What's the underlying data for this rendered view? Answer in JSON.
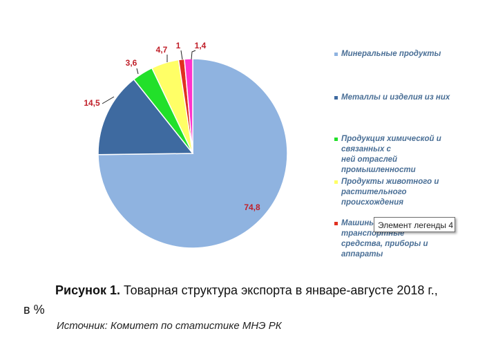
{
  "chart_data": {
    "type": "pie",
    "title": "",
    "slices": [
      {
        "label": "Минеральные продукты",
        "value": 74.8,
        "display": "74,8",
        "color": "#8fb3e0"
      },
      {
        "label": "Металлы и изделия из них",
        "value": 14.5,
        "display": "14,5",
        "color": "#3e6aa0"
      },
      {
        "label": "Продукция химической и связанных с ней отраслей промышленности",
        "value": 3.6,
        "display": "3,6",
        "color": "#22e02a"
      },
      {
        "label": "Продукты животного и растительного происхождения",
        "value": 4.7,
        "display": "4,7",
        "color": "#ffff66"
      },
      {
        "label": "Машины, транспортные средства, приборы и аппараты",
        "value": 1,
        "display": "1",
        "color": "#e03020"
      },
      {
        "label": "",
        "value": 1.4,
        "display": "1,4",
        "color": "#ff33cc"
      }
    ],
    "legend": {
      "placement": "right",
      "items": [
        {
          "lines": [
            "Минеральные продукты"
          ],
          "color": "#8fb3e0"
        },
        {
          "lines": [
            "Металлы и изделия из них"
          ],
          "color": "#3e6aa0"
        },
        {
          "lines": [
            "Продукция химической и",
            "связанных с",
            " ней отраслей",
            "промышленности"
          ],
          "color": "#22e02a"
        },
        {
          "lines": [
            "Продукты животного и",
            "растительного",
            "происхождения"
          ],
          "color": "#ffff66"
        },
        {
          "lines": [
            "Машины,",
            "транспортные",
            "средства, приборы и",
            "аппараты"
          ],
          "color": "#e03020"
        }
      ]
    }
  },
  "tooltip": "Элемент легенды 4",
  "caption": {
    "bold": "Рисунок 1.",
    "text": " Товарная структура экспорта в январе-августе 2018 г.,",
    "cont": "в %"
  },
  "source": "Источник: Комитет по статистике МНЭ РК"
}
